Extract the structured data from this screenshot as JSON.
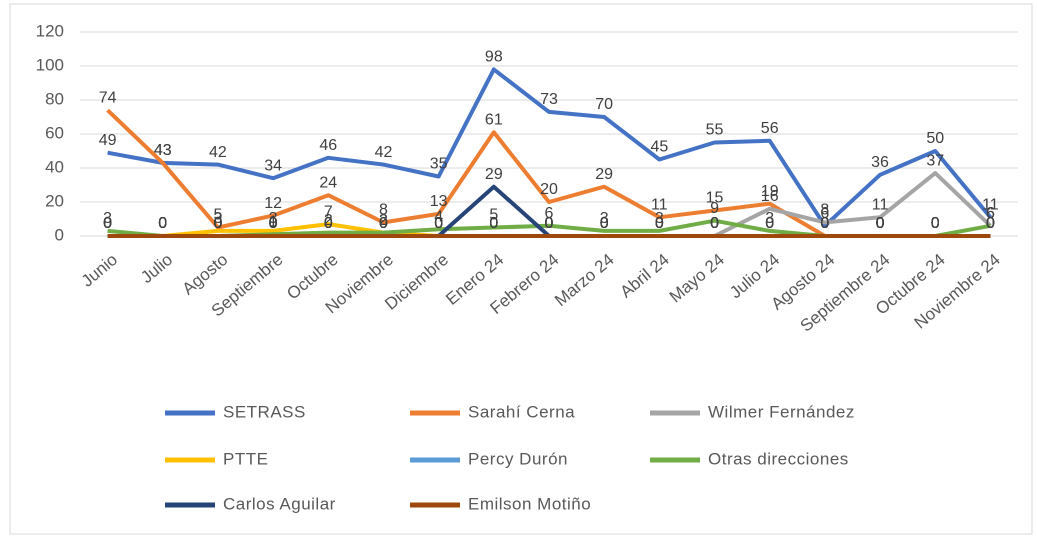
{
  "chart_data": {
    "type": "line",
    "categories": [
      "Junio",
      "Julio",
      "Agosto",
      "Septiembre",
      "Octubre",
      "Noviembre",
      "Diciembre",
      "Enero 24",
      "Febrero 24",
      "Marzo 24",
      "Abril 24",
      "Mayo 24",
      "Julio 24",
      "Agosto 24",
      "Septiembre 24",
      "Octubre 24",
      "Noviembre 24"
    ],
    "series": [
      {
        "name": "SETRASS",
        "color": "#4472c4",
        "values": [
          49,
          43,
          42,
          34,
          46,
          42,
          35,
          98,
          73,
          70,
          45,
          55,
          56,
          6,
          36,
          50,
          11
        ]
      },
      {
        "name": "Sarahí Cerna",
        "color": "#ed7d31",
        "values": [
          74,
          43,
          5,
          12,
          24,
          8,
          13,
          61,
          20,
          29,
          11,
          15,
          19,
          0,
          0,
          0,
          0
        ]
      },
      {
        "name": "Wilmer Fernández",
        "color": "#a5a5a5",
        "values": [
          0,
          0,
          0,
          0,
          0,
          0,
          0,
          0,
          0,
          0,
          0,
          0,
          16,
          8,
          11,
          37,
          6
        ]
      },
      {
        "name": "PTTE",
        "color": "#ffc000",
        "values": [
          0,
          0,
          3,
          3,
          7,
          2,
          0,
          0,
          0,
          0,
          0,
          0,
          0,
          0,
          0,
          0,
          0
        ]
      },
      {
        "name": "Percy Durón",
        "color": "#5b9bd5",
        "values": [
          0,
          0,
          0,
          0,
          0,
          0,
          0,
          0,
          0,
          0,
          0,
          0,
          0,
          0,
          0,
          0,
          0
        ]
      },
      {
        "name": "Otras direcciones",
        "color": "#70ad47",
        "values": [
          3,
          0,
          0,
          1,
          2,
          2,
          4,
          5,
          6,
          3,
          3,
          9,
          3,
          0,
          0,
          0,
          6
        ]
      },
      {
        "name": "Carlos Aguilar",
        "color": "#264478",
        "values": [
          0,
          0,
          0,
          0,
          0,
          0,
          0,
          29,
          0,
          0,
          0,
          0,
          0,
          0,
          0,
          0,
          0
        ]
      },
      {
        "name": "Emilson Motiño",
        "color": "#9e480e",
        "values": [
          0,
          0,
          0,
          0,
          0,
          0,
          0,
          0,
          0,
          0,
          0,
          0,
          0,
          0,
          0,
          0,
          0
        ]
      }
    ],
    "ylim": [
      0,
      120
    ],
    "yticks": [
      0,
      20,
      40,
      60,
      80,
      100,
      120
    ],
    "grid": true
  }
}
